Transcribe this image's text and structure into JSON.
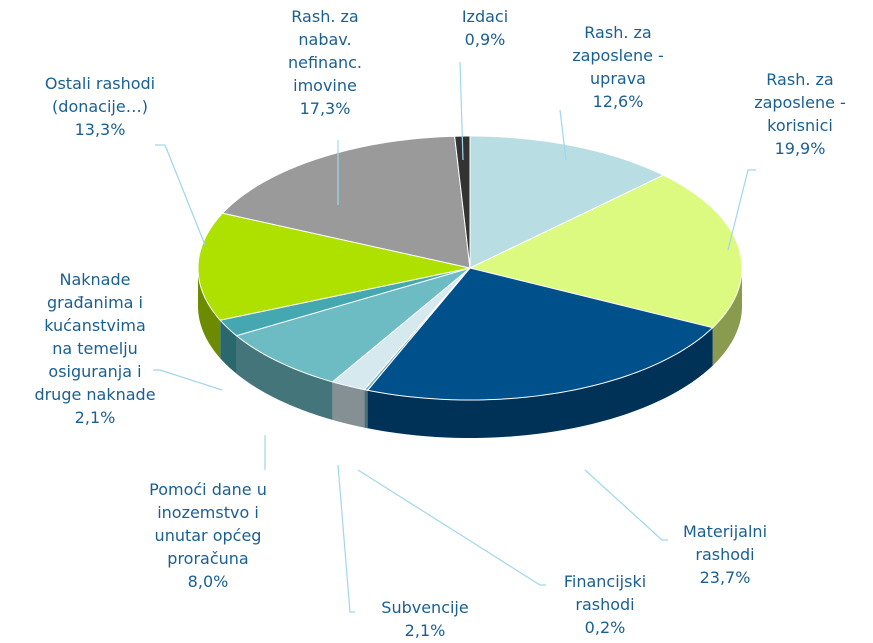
{
  "chart_data": {
    "type": "pie",
    "categories": [
      "Rash. za\nzaposlene -\nuprava",
      "Rash. za\nzaposlene -\nkorisnici",
      "Materijalni\nrashodi",
      "Financijski\nrashodi",
      "Subvencije",
      "Pomoći dane u\ninozemstvo i\nunutar općeg\nproračuna",
      "Naknade\ngrađanima i\nkućanstvima\nna temelju\nosiguranja i\ndruge naknade",
      "Ostali rashodi\n(donacije…)",
      "Rash. za\nnabav.\nnefinanc.\nimovine",
      "Izdaci"
    ],
    "values": [
      12.6,
      19.9,
      23.7,
      0.2,
      2.1,
      8.0,
      2.1,
      13.3,
      17.3,
      0.9
    ],
    "value_labels": [
      "12,6%",
      "19,9%",
      "23,7%",
      "0,2%",
      "2,1%",
      "8,0%",
      "2,1%",
      "13,3%",
      "17,3%",
      "0,9%"
    ],
    "colors": [
      "#b8dde2",
      "#dcfa7f",
      "#00508c",
      "#7fb0c0",
      "#d6e9ee",
      "#6dbcc4",
      "#45a8b0",
      "#aee000",
      "#9a9a9a",
      "#333333"
    ]
  }
}
